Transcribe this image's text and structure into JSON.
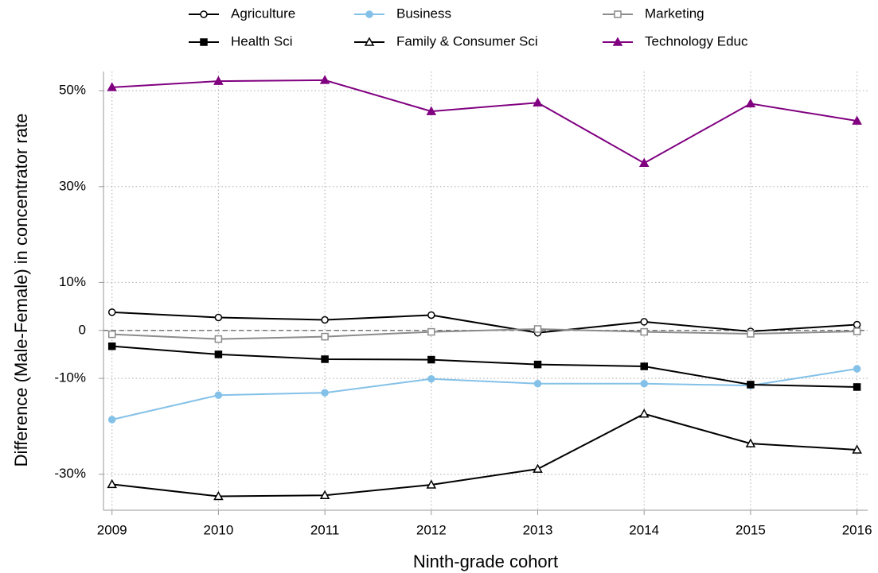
{
  "chart_data": {
    "type": "line",
    "x_label": "Ninth-grade cohort",
    "y_label": "Difference (Male-Female) in concentrator rate",
    "x": [
      2009,
      2010,
      2011,
      2012,
      2013,
      2014,
      2015,
      2016
    ],
    "xlim": [
      2008.92,
      2016.1
    ],
    "xticks": [
      2009,
      2010,
      2011,
      2012,
      2013,
      2014,
      2015,
      2016
    ],
    "ylim": [
      -37.5,
      54
    ],
    "yticks": [
      {
        "value": -30,
        "label": "-30%"
      },
      {
        "value": -10,
        "label": "-10%"
      },
      0,
      {
        "value": 10,
        "label": "10%"
      },
      {
        "value": 30,
        "label": "30%"
      },
      {
        "value": 50,
        "label": "50%"
      }
    ],
    "grid": true,
    "hline": 0,
    "series": [
      {
        "name": "Agriculture",
        "color": "#000000",
        "marker": "circle",
        "hollow": true,
        "values": [
          3.8,
          2.7,
          2.2,
          3.2,
          -0.5,
          1.8,
          -0.2,
          1.2
        ]
      },
      {
        "name": "Business",
        "color": "#84c1e8",
        "marker": "circle",
        "hollow": false,
        "values": [
          -18.6,
          -13.5,
          -13.0,
          -10.1,
          -11.1,
          -11.1,
          -11.5,
          -8.0
        ]
      },
      {
        "name": "Marketing",
        "color": "#8c8c8c",
        "marker": "square",
        "hollow": true,
        "values": [
          -0.8,
          -1.8,
          -1.3,
          -0.3,
          0.3,
          -0.3,
          -0.7,
          -0.2
        ]
      },
      {
        "name": "Health Sci",
        "color": "#000000",
        "marker": "square",
        "hollow": false,
        "values": [
          -3.3,
          -5.0,
          -6.0,
          -6.1,
          -7.1,
          -7.5,
          -11.3,
          -11.8
        ]
      },
      {
        "name": "Family & Consumer Sci",
        "color": "#000000",
        "marker": "triangle",
        "hollow": true,
        "values": [
          -32.1,
          -34.6,
          -34.4,
          -32.2,
          -28.9,
          -17.4,
          -23.6,
          -24.9
        ]
      },
      {
        "name": "Technology Educ",
        "color": "#800080",
        "marker": "triangle",
        "hollow": false,
        "values": [
          50.7,
          52.0,
          52.2,
          45.7,
          47.5,
          34.9,
          47.3,
          43.7
        ]
      }
    ]
  }
}
